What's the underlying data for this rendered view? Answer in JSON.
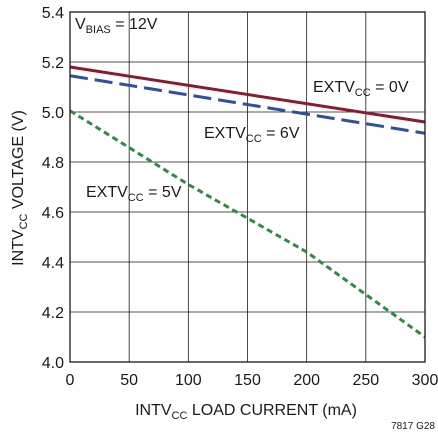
{
  "chart_data": {
    "type": "line",
    "xlabel": {
      "main": "INTV",
      "sub": "CC",
      "rest": " LOAD CURRENT (mA)"
    },
    "ylabel": {
      "main": "INTV",
      "sub": "CC",
      "rest": " VOLTAGE (V)"
    },
    "xlim": [
      0,
      300
    ],
    "ylim": [
      4.0,
      5.4
    ],
    "x_ticks": [
      0,
      50,
      100,
      150,
      200,
      250,
      300
    ],
    "y_ticks": [
      "4.0",
      "4.2",
      "4.4",
      "4.6",
      "4.8",
      "5.0",
      "5.2",
      "5.4"
    ],
    "grid": true,
    "series": [
      {
        "label": {
          "main": "EXTV",
          "sub": "CC",
          "rest": " = 0V"
        },
        "style": "solid",
        "color": "#8b1a2f",
        "points": [
          [
            0,
            5.18
          ],
          [
            300,
            4.96
          ]
        ]
      },
      {
        "label": {
          "main": "EXTV",
          "sub": "CC",
          "rest": " = 6V"
        },
        "style": "dashed",
        "color": "#2f4f9f",
        "points": [
          [
            0,
            5.145
          ],
          [
            300,
            4.915
          ]
        ]
      },
      {
        "label": {
          "main": "EXTV",
          "sub": "CC",
          "rest": " = 5V"
        },
        "style": "dotted",
        "color": "#2f8a45",
        "points": [
          [
            0,
            5.005
          ],
          [
            100,
            4.71
          ],
          [
            200,
            4.44
          ],
          [
            300,
            4.1
          ]
        ]
      }
    ],
    "annotation": {
      "main": "V",
      "sub": "BIAS",
      "rest": " = 12V"
    },
    "figure_id": "7817 G28"
  }
}
